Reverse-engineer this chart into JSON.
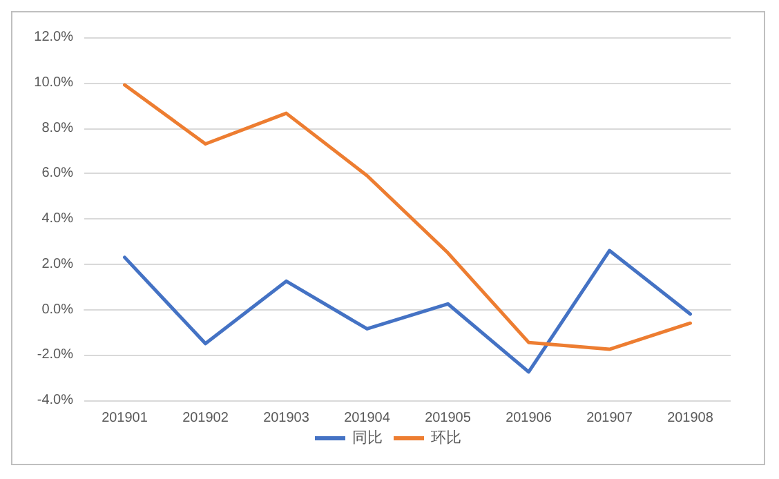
{
  "chart_data": {
    "type": "line",
    "categories": [
      "201901",
      "201902",
      "201903",
      "201904",
      "201905",
      "201906",
      "201907",
      "201908"
    ],
    "series": [
      {
        "name": "同比",
        "color": "#4472c4",
        "values": [
          2.3,
          -1.5,
          1.25,
          -0.85,
          0.25,
          -2.75,
          2.6,
          -0.2
        ]
      },
      {
        "name": "环比",
        "color": "#ed7d31",
        "values": [
          9.9,
          7.3,
          8.65,
          5.9,
          2.5,
          -1.45,
          -1.75,
          -0.6
        ]
      }
    ],
    "ylim": [
      -4,
      12
    ],
    "yticks": [
      {
        "value": -4,
        "label": "-4.0%"
      },
      {
        "value": -2,
        "label": "-2.0%"
      },
      {
        "value": 0,
        "label": "0.0%"
      },
      {
        "value": 2,
        "label": "2.0%"
      },
      {
        "value": 4,
        "label": "4.0%"
      },
      {
        "value": 6,
        "label": "6.0%"
      },
      {
        "value": 8,
        "label": "8.0%"
      },
      {
        "value": 10,
        "label": "10.0%"
      },
      {
        "value": 12,
        "label": "12.0%"
      }
    ],
    "grid": "y",
    "legend": "bottom",
    "marker": "none",
    "line_style": "solid"
  }
}
